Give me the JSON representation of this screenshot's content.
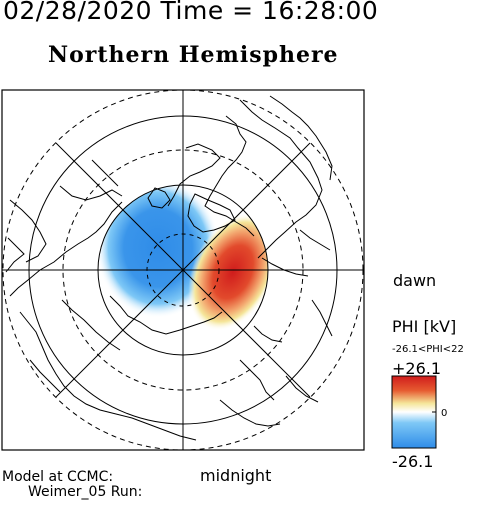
{
  "header": {
    "datetime": "02/28/2020 Time = 16:28:00",
    "title": "Northern Hemisphere"
  },
  "map": {
    "hemisphere": "Northern",
    "projection": "polar",
    "direction_labels": {
      "dawn": "dawn",
      "midnight": "midnight"
    },
    "potential_pattern": {
      "negative_cell_color": "#2f8ce8",
      "positive_cell_color": "#e02828",
      "background_color": "#ffffff"
    }
  },
  "colorbar": {
    "title": "PHI [kV]",
    "range_label": "-26.1<PHI<22",
    "max_label": "+26.1",
    "zero_label": "0",
    "min_label": "-26.1",
    "colors": [
      "#2f8ce8",
      "#7ec8f6",
      "#ffffff",
      "#f5e69a",
      "#e65a30",
      "#d01c1c"
    ]
  },
  "footer": {
    "model_line1": "Model at CCMC:",
    "model_line2": "Weimer_05 Run:"
  }
}
